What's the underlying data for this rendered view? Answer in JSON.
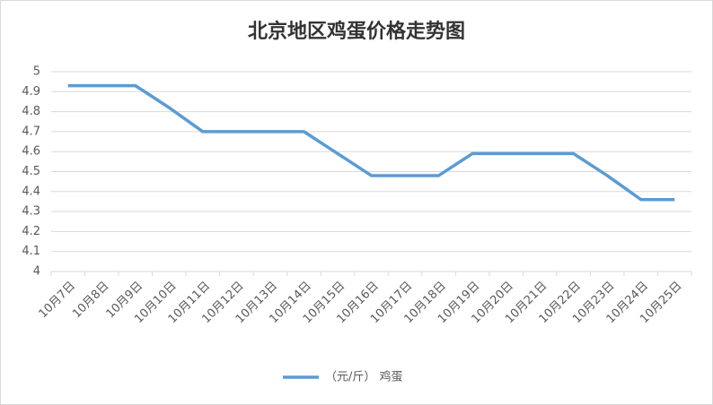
{
  "chart_data": {
    "type": "line",
    "title": "北京地区鸡蛋价格走势图",
    "categories": [
      "10月7日",
      "10月8日",
      "10月9日",
      "10月10日",
      "10月11日",
      "10月12日",
      "10月13日",
      "10月14日",
      "10月15日",
      "10月16日",
      "10月17日",
      "10月18日",
      "10月19日",
      "10月20日",
      "10月21日",
      "10月22日",
      "10月23日",
      "10月24日",
      "10月25日"
    ],
    "series": [
      {
        "name": "（元/斤） 鸡蛋",
        "color": "#5b9bd5",
        "values": [
          4.93,
          4.93,
          4.93,
          4.82,
          4.7,
          4.7,
          4.7,
          4.7,
          4.59,
          4.48,
          4.48,
          4.48,
          4.59,
          4.59,
          4.59,
          4.59,
          4.48,
          4.36,
          4.36
        ]
      }
    ],
    "ylim": [
      4,
      5
    ],
    "yticks": [
      4,
      4.1,
      4.2,
      4.3,
      4.4,
      4.5,
      4.6,
      4.7,
      4.8,
      4.9,
      5
    ],
    "grid": true,
    "legend": "bottom"
  }
}
